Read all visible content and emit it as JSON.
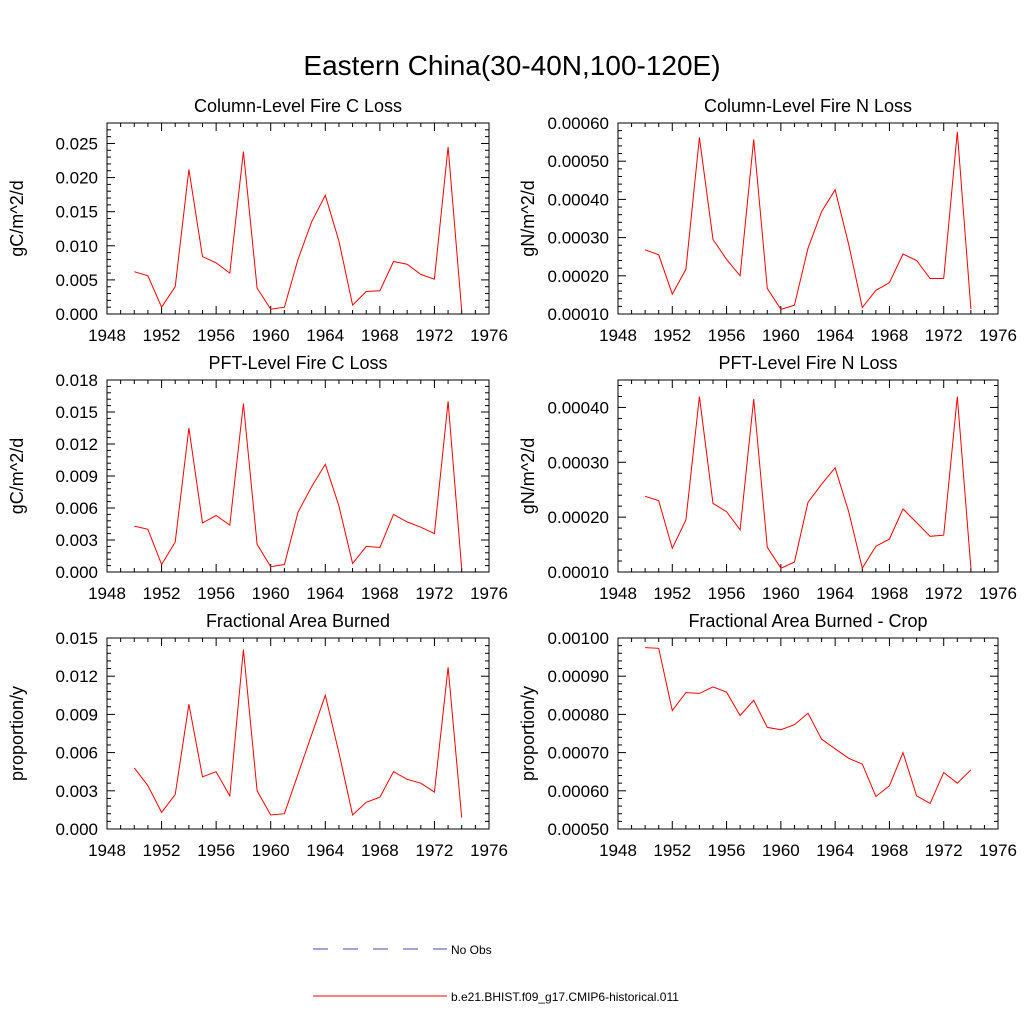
{
  "page_title": "Eastern China(30-40N,100-120E)",
  "legend": {
    "entries": [
      {
        "label": "No Obs",
        "color": "#4a4aaa",
        "dashed": true
      },
      {
        "label": "b.e21.BHIST.f09_g17.CMIP6-historical.011",
        "color": "#ff0000",
        "dashed": false
      }
    ]
  },
  "chart_data": [
    {
      "type": "line",
      "title": "Column-Level Fire C Loss",
      "ylabel": "gC/m^2/d",
      "xlim": [
        1948,
        1976
      ],
      "ylim": [
        0,
        0.028
      ],
      "xticks": [
        "1948",
        "1952",
        "1956",
        "1960",
        "1964",
        "1968",
        "1972",
        "1976"
      ],
      "yticks": [
        "0.000",
        "0.005",
        "0.010",
        "0.015",
        "0.020",
        "0.025"
      ],
      "x": [
        1950,
        1951,
        1952,
        1953,
        1954,
        1955,
        1956,
        1957,
        1958,
        1959,
        1960,
        1961,
        1962,
        1963,
        1964,
        1965,
        1966,
        1967,
        1968,
        1969,
        1970,
        1971,
        1972,
        1973,
        1974
      ],
      "series": [
        {
          "color": "#ff0000",
          "values": [
            0.0062,
            0.0056,
            0.001,
            0.004,
            0.0212,
            0.0084,
            0.0075,
            0.006,
            0.0238,
            0.0038,
            0.0007,
            0.001,
            0.008,
            0.0135,
            0.0174,
            0.0107,
            0.0013,
            0.0033,
            0.0034,
            0.0077,
            0.0073,
            0.0058,
            0.0051,
            0.0245,
            0.0005
          ]
        }
      ]
    },
    {
      "type": "line",
      "title": "Column-Level Fire N Loss",
      "ylabel": "gN/m^2/d",
      "xlim": [
        1948,
        1976
      ],
      "ylim": [
        0.0001,
        0.0006
      ],
      "xticks": [
        "1948",
        "1952",
        "1956",
        "1960",
        "1964",
        "1968",
        "1972",
        "1976"
      ],
      "yticks": [
        "0.00010",
        "0.00020",
        "0.00030",
        "0.00040",
        "0.00050",
        "0.00060"
      ],
      "x": [
        1950,
        1951,
        1952,
        1953,
        1954,
        1955,
        1956,
        1957,
        1958,
        1959,
        1960,
        1961,
        1962,
        1963,
        1964,
        1965,
        1966,
        1967,
        1968,
        1969,
        1970,
        1971,
        1972,
        1973,
        1974
      ],
      "series": [
        {
          "color": "#ff0000",
          "values": [
            0.000268,
            0.000255,
            0.000152,
            0.000217,
            0.000562,
            0.000295,
            0.000243,
            0.0002,
            0.000557,
            0.000167,
            0.000112,
            0.000123,
            0.000272,
            0.000368,
            0.000425,
            0.000282,
            0.000117,
            0.000162,
            0.000182,
            0.000257,
            0.00024,
            0.000193,
            0.000193,
            0.000577,
            0.000113
          ]
        }
      ]
    },
    {
      "type": "line",
      "title": "PFT-Level Fire C Loss",
      "ylabel": "gC/m^2/d",
      "xlim": [
        1948,
        1976
      ],
      "ylim": [
        0,
        0.018
      ],
      "xticks": [
        "1948",
        "1952",
        "1956",
        "1960",
        "1964",
        "1968",
        "1972",
        "1976"
      ],
      "yticks": [
        "0.000",
        "0.003",
        "0.006",
        "0.009",
        "0.012",
        "0.015",
        "0.018"
      ],
      "x": [
        1950,
        1951,
        1952,
        1953,
        1954,
        1955,
        1956,
        1957,
        1958,
        1959,
        1960,
        1961,
        1962,
        1963,
        1964,
        1965,
        1966,
        1967,
        1968,
        1969,
        1970,
        1971,
        1972,
        1973,
        1974
      ],
      "series": [
        {
          "color": "#ff0000",
          "values": [
            0.0043,
            0.004,
            0.0007,
            0.0028,
            0.0135,
            0.0046,
            0.0053,
            0.0044,
            0.0158,
            0.0026,
            0.0005,
            0.0007,
            0.0056,
            0.008,
            0.0101,
            0.0062,
            0.0008,
            0.0024,
            0.0023,
            0.0054,
            0.0047,
            0.0042,
            0.0036,
            0.016,
            0.0003
          ]
        }
      ]
    },
    {
      "type": "line",
      "title": "PFT-Level Fire N Loss",
      "ylabel": "gN/m^2/d",
      "xlim": [
        1948,
        1976
      ],
      "ylim": [
        0.0001,
        0.00045
      ],
      "xticks": [
        "1948",
        "1952",
        "1956",
        "1960",
        "1964",
        "1968",
        "1972",
        "1976"
      ],
      "yticks": [
        "0.00010",
        "0.00020",
        "0.00030",
        "0.00040"
      ],
      "x": [
        1950,
        1951,
        1952,
        1953,
        1954,
        1955,
        1956,
        1957,
        1958,
        1959,
        1960,
        1961,
        1962,
        1963,
        1964,
        1965,
        1966,
        1967,
        1968,
        1969,
        1970,
        1971,
        1972,
        1973,
        1974
      ],
      "series": [
        {
          "color": "#ff0000",
          "values": [
            0.000238,
            0.00023,
            0.000143,
            0.000195,
            0.00042,
            0.000225,
            0.00021,
            0.000177,
            0.000415,
            0.000145,
            0.000107,
            0.000118,
            0.000227,
            0.00026,
            0.00029,
            0.00021,
            0.000107,
            0.000147,
            0.00016,
            0.000215,
            0.00019,
            0.000165,
            0.000167,
            0.00042,
            0.000107
          ]
        }
      ]
    },
    {
      "type": "line",
      "title": "Fractional Area Burned",
      "ylabel": "proportion/y",
      "xlim": [
        1948,
        1976
      ],
      "ylim": [
        0,
        0.015
      ],
      "xticks": [
        "1948",
        "1952",
        "1956",
        "1960",
        "1964",
        "1968",
        "1972",
        "1976"
      ],
      "yticks": [
        "0.000",
        "0.003",
        "0.006",
        "0.009",
        "0.012",
        "0.015"
      ],
      "x": [
        1950,
        1951,
        1952,
        1953,
        1954,
        1955,
        1956,
        1957,
        1958,
        1959,
        1960,
        1961,
        1962,
        1963,
        1964,
        1965,
        1966,
        1967,
        1968,
        1969,
        1970,
        1971,
        1972,
        1973,
        1974
      ],
      "series": [
        {
          "color": "#ff0000",
          "values": [
            0.0048,
            0.0034,
            0.0013,
            0.0027,
            0.0098,
            0.0041,
            0.0045,
            0.0026,
            0.0141,
            0.003,
            0.0011,
            0.0012,
            0.0043,
            0.0074,
            0.0105,
            0.006,
            0.0011,
            0.0021,
            0.0025,
            0.0045,
            0.0039,
            0.0036,
            0.0029,
            0.0127,
            0.0009
          ]
        }
      ]
    },
    {
      "type": "line",
      "title": "Fractional Area Burned - Crop",
      "ylabel": "proportion/y",
      "xlim": [
        1948,
        1976
      ],
      "ylim": [
        0.0005,
        0.001
      ],
      "xticks": [
        "1948",
        "1952",
        "1956",
        "1960",
        "1964",
        "1968",
        "1972",
        "1976"
      ],
      "yticks": [
        "0.00050",
        "0.00060",
        "0.00070",
        "0.00080",
        "0.00090",
        "0.00100"
      ],
      "x": [
        1950,
        1951,
        1952,
        1953,
        1954,
        1955,
        1956,
        1957,
        1958,
        1959,
        1960,
        1961,
        1962,
        1963,
        1964,
        1965,
        1966,
        1967,
        1968,
        1969,
        1970,
        1971,
        1972,
        1973,
        1974
      ],
      "series": [
        {
          "color": "#ff0000",
          "values": [
            0.000975,
            0.000973,
            0.00081,
            0.000857,
            0.000855,
            0.000872,
            0.000858,
            0.000797,
            0.000837,
            0.000766,
            0.00076,
            0.000773,
            0.000803,
            0.000735,
            0.00071,
            0.000685,
            0.00067,
            0.000585,
            0.000613,
            0.0007,
            0.000587,
            0.000567,
            0.000648,
            0.00062,
            0.000655
          ]
        }
      ]
    }
  ]
}
